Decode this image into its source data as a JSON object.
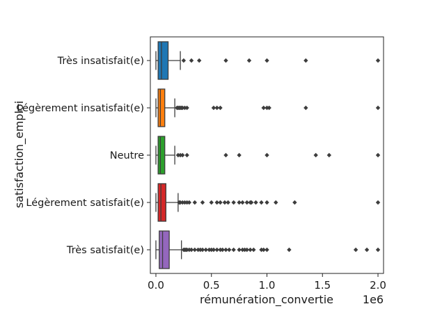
{
  "chart_data": {
    "type": "boxplot",
    "orientation": "horizontal",
    "title": "",
    "xlabel": "rémunération_convertie",
    "ylabel": "satisfaction_emploi",
    "x_offset_label": "1e6",
    "xlim": [
      -0.05,
      2.05
    ],
    "xticks": [
      0.0,
      0.5,
      1.0,
      1.5,
      2.0
    ],
    "xtick_labels": [
      "0.0",
      "0.5",
      "1.0",
      "1.5",
      "2.0"
    ],
    "x_scale_factor": 1000000,
    "grid": false,
    "legend": "none",
    "categories": [
      "Très insatisfait(e)",
      "Légèrement insatisfait(e)",
      "Neutre",
      "Légèrement satisfait(e)",
      "Très satisfait(e)"
    ],
    "series": [
      {
        "color": "#1f77b4",
        "whisker_low": 0.0,
        "q1": 0.02,
        "median": 0.05,
        "q3": 0.11,
        "whisker_high": 0.22,
        "outliers": [
          0.25,
          0.32,
          0.39,
          0.63,
          0.84,
          1.0,
          1.35,
          2.0
        ]
      },
      {
        "color": "#ff7f0e",
        "whisker_low": 0.0,
        "q1": 0.02,
        "median": 0.04,
        "q3": 0.08,
        "whisker_high": 0.17,
        "outliers": [
          0.19,
          0.2,
          0.21,
          0.22,
          0.23,
          0.24,
          0.26,
          0.28,
          0.52,
          0.55,
          0.58,
          0.97,
          1.0,
          1.02,
          1.35,
          2.0
        ]
      },
      {
        "color": "#2ca02c",
        "whisker_low": 0.0,
        "q1": 0.02,
        "median": 0.04,
        "q3": 0.08,
        "whisker_high": 0.17,
        "outliers": [
          0.2,
          0.22,
          0.24,
          0.28,
          0.63,
          0.75,
          1.0,
          1.44,
          1.56,
          2.0
        ]
      },
      {
        "color": "#d62728",
        "whisker_low": 0.0,
        "q1": 0.02,
        "median": 0.045,
        "q3": 0.09,
        "whisker_high": 0.2,
        "outliers": [
          0.21,
          0.22,
          0.24,
          0.26,
          0.28,
          0.3,
          0.35,
          0.42,
          0.5,
          0.55,
          0.58,
          0.62,
          0.65,
          0.7,
          0.75,
          0.78,
          0.82,
          0.85,
          0.86,
          0.9,
          0.95,
          1.0,
          1.08,
          1.25,
          2.0
        ]
      },
      {
        "color": "#9467bd",
        "whisker_low": 0.0,
        "q1": 0.03,
        "median": 0.06,
        "q3": 0.12,
        "whisker_high": 0.23,
        "outliers": [
          0.25,
          0.26,
          0.27,
          0.28,
          0.3,
          0.32,
          0.35,
          0.38,
          0.4,
          0.42,
          0.45,
          0.48,
          0.5,
          0.52,
          0.55,
          0.58,
          0.6,
          0.63,
          0.66,
          0.7,
          0.75,
          0.78,
          0.8,
          0.82,
          0.85,
          0.88,
          0.95,
          0.97,
          1.0,
          1.2,
          1.8,
          1.9,
          2.0
        ]
      }
    ]
  }
}
